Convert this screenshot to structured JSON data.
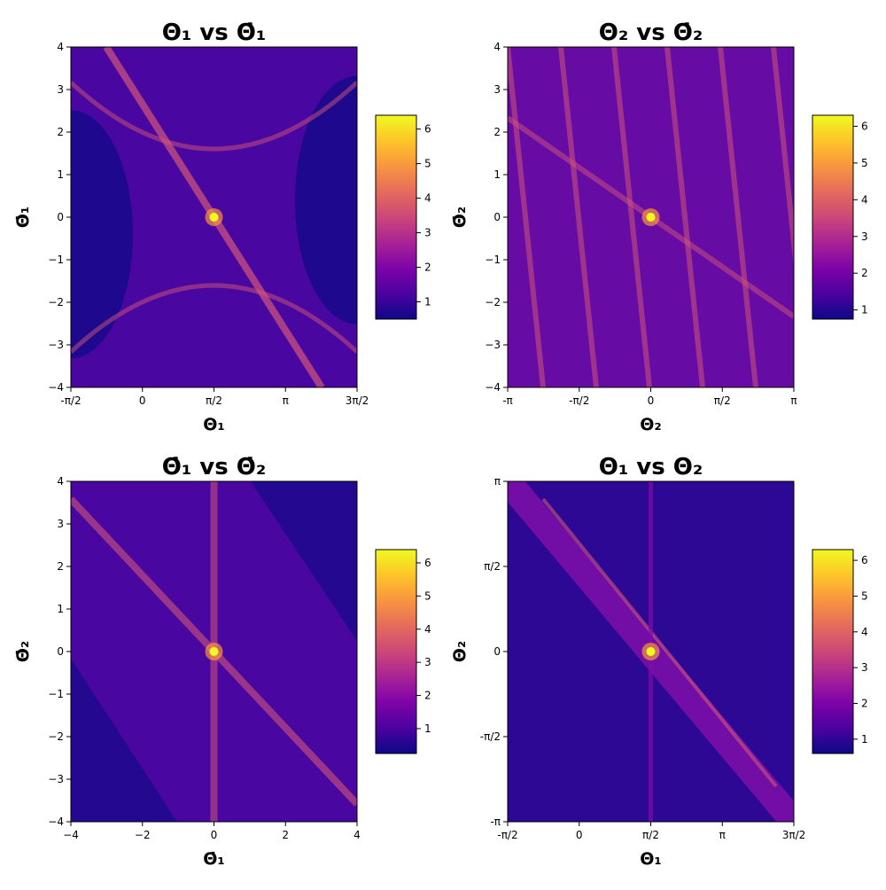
{
  "chart_data": [
    {
      "type": "heatmap",
      "title": "Θ₁ vs Θ̇₁",
      "xlabel": "Θ₁",
      "ylabel": "Θ̇₁",
      "xlim": [
        -1.5708,
        4.7124
      ],
      "ylim": [
        -4,
        4
      ],
      "xticks": [
        {
          "value": -1.5708,
          "label": "-π/2"
        },
        {
          "value": 0,
          "label": "0"
        },
        {
          "value": 1.5708,
          "label": "π/2"
        },
        {
          "value": 3.1416,
          "label": "π"
        },
        {
          "value": 4.7124,
          "label": "3π/2"
        }
      ],
      "yticks": [
        {
          "value": -4,
          "label": "−4"
        },
        {
          "value": -3,
          "label": "−3"
        },
        {
          "value": -2,
          "label": "−2"
        },
        {
          "value": -1,
          "label": "−1"
        },
        {
          "value": 0,
          "label": "0"
        },
        {
          "value": 1,
          "label": "1"
        },
        {
          "value": 2,
          "label": "2"
        },
        {
          "value": 3,
          "label": "3"
        },
        {
          "value": 4,
          "label": "4"
        }
      ],
      "colormap": "plasma",
      "color_range": [
        0.5,
        6.4
      ],
      "colorbar_ticks": [
        {
          "value": 1,
          "label": "1"
        },
        {
          "value": 2,
          "label": "2"
        },
        {
          "value": 3,
          "label": "3"
        },
        {
          "value": 4,
          "label": "4"
        },
        {
          "value": 5,
          "label": "5"
        },
        {
          "value": 6,
          "label": "6"
        }
      ],
      "peak": {
        "x": 1.5708,
        "y": 0,
        "value": 6.2
      }
    },
    {
      "type": "heatmap",
      "title": "Θ₂ vs Θ̇₂",
      "xlabel": "Θ₂",
      "ylabel": "Θ̇₂",
      "xlim": [
        -3.1416,
        3.1416
      ],
      "ylim": [
        -4,
        4
      ],
      "xticks": [
        {
          "value": -3.1416,
          "label": "-π"
        },
        {
          "value": -1.5708,
          "label": "-π/2"
        },
        {
          "value": 0,
          "label": "0"
        },
        {
          "value": 1.5708,
          "label": "π/2"
        },
        {
          "value": 3.1416,
          "label": "π"
        }
      ],
      "yticks": [
        {
          "value": -4,
          "label": "−4"
        },
        {
          "value": -3,
          "label": "−3"
        },
        {
          "value": -2,
          "label": "−2"
        },
        {
          "value": -1,
          "label": "−1"
        },
        {
          "value": 0,
          "label": "0"
        },
        {
          "value": 1,
          "label": "1"
        },
        {
          "value": 2,
          "label": "2"
        },
        {
          "value": 3,
          "label": "3"
        },
        {
          "value": 4,
          "label": "4"
        }
      ],
      "colormap": "plasma",
      "color_range": [
        0.75,
        6.3
      ],
      "colorbar_ticks": [
        {
          "value": 1,
          "label": "1"
        },
        {
          "value": 2,
          "label": "2"
        },
        {
          "value": 3,
          "label": "3"
        },
        {
          "value": 4,
          "label": "4"
        },
        {
          "value": 5,
          "label": "5"
        },
        {
          "value": 6,
          "label": "6"
        }
      ],
      "peak": {
        "x": 0,
        "y": 0,
        "value": 6.0
      }
    },
    {
      "type": "heatmap",
      "title": "Θ̇₁ vs Θ̇₂",
      "xlabel": "Θ̇₁",
      "ylabel": "Θ̇₂",
      "xlim": [
        -4,
        4
      ],
      "ylim": [
        -4,
        4
      ],
      "xticks": [
        {
          "value": -4,
          "label": "−4"
        },
        {
          "value": -2,
          "label": "−2"
        },
        {
          "value": 0,
          "label": "0"
        },
        {
          "value": 2,
          "label": "2"
        },
        {
          "value": 4,
          "label": "4"
        }
      ],
      "yticks": [
        {
          "value": -4,
          "label": "−4"
        },
        {
          "value": -3,
          "label": "−3"
        },
        {
          "value": -2,
          "label": "−2"
        },
        {
          "value": -1,
          "label": "−1"
        },
        {
          "value": 0,
          "label": "0"
        },
        {
          "value": 1,
          "label": "1"
        },
        {
          "value": 2,
          "label": "2"
        },
        {
          "value": 3,
          "label": "3"
        },
        {
          "value": 4,
          "label": "4"
        }
      ],
      "colormap": "plasma",
      "color_range": [
        0.25,
        6.4
      ],
      "colorbar_ticks": [
        {
          "value": 1,
          "label": "1"
        },
        {
          "value": 2,
          "label": "2"
        },
        {
          "value": 3,
          "label": "3"
        },
        {
          "value": 4,
          "label": "4"
        },
        {
          "value": 5,
          "label": "5"
        },
        {
          "value": 6,
          "label": "6"
        }
      ],
      "peak": {
        "x": 0,
        "y": 0,
        "value": 6.0
      }
    },
    {
      "type": "heatmap",
      "title": "Θ₁ vs Θ₂",
      "xlabel": "Θ₁",
      "ylabel": "Θ₂",
      "xlim": [
        -1.5708,
        4.7124
      ],
      "ylim": [
        -3.1416,
        3.1416
      ],
      "xticks": [
        {
          "value": -1.5708,
          "label": "-π/2"
        },
        {
          "value": 0,
          "label": "0"
        },
        {
          "value": 1.5708,
          "label": "π/2"
        },
        {
          "value": 3.1416,
          "label": "π"
        },
        {
          "value": 4.7124,
          "label": "3π/2"
        }
      ],
      "yticks": [
        {
          "value": -3.1416,
          "label": "-π"
        },
        {
          "value": -1.5708,
          "label": "-π/2"
        },
        {
          "value": 0,
          "label": "0"
        },
        {
          "value": 1.5708,
          "label": "π/2"
        },
        {
          "value": 3.1416,
          "label": "π"
        }
      ],
      "colormap": "plasma",
      "color_range": [
        0.6,
        6.3
      ],
      "colorbar_ticks": [
        {
          "value": 1,
          "label": "1"
        },
        {
          "value": 2,
          "label": "2"
        },
        {
          "value": 3,
          "label": "3"
        },
        {
          "value": 4,
          "label": "4"
        },
        {
          "value": 5,
          "label": "5"
        },
        {
          "value": 6,
          "label": "6"
        }
      ],
      "peak": {
        "x": 1.5708,
        "y": 0,
        "value": 6.0
      }
    }
  ]
}
